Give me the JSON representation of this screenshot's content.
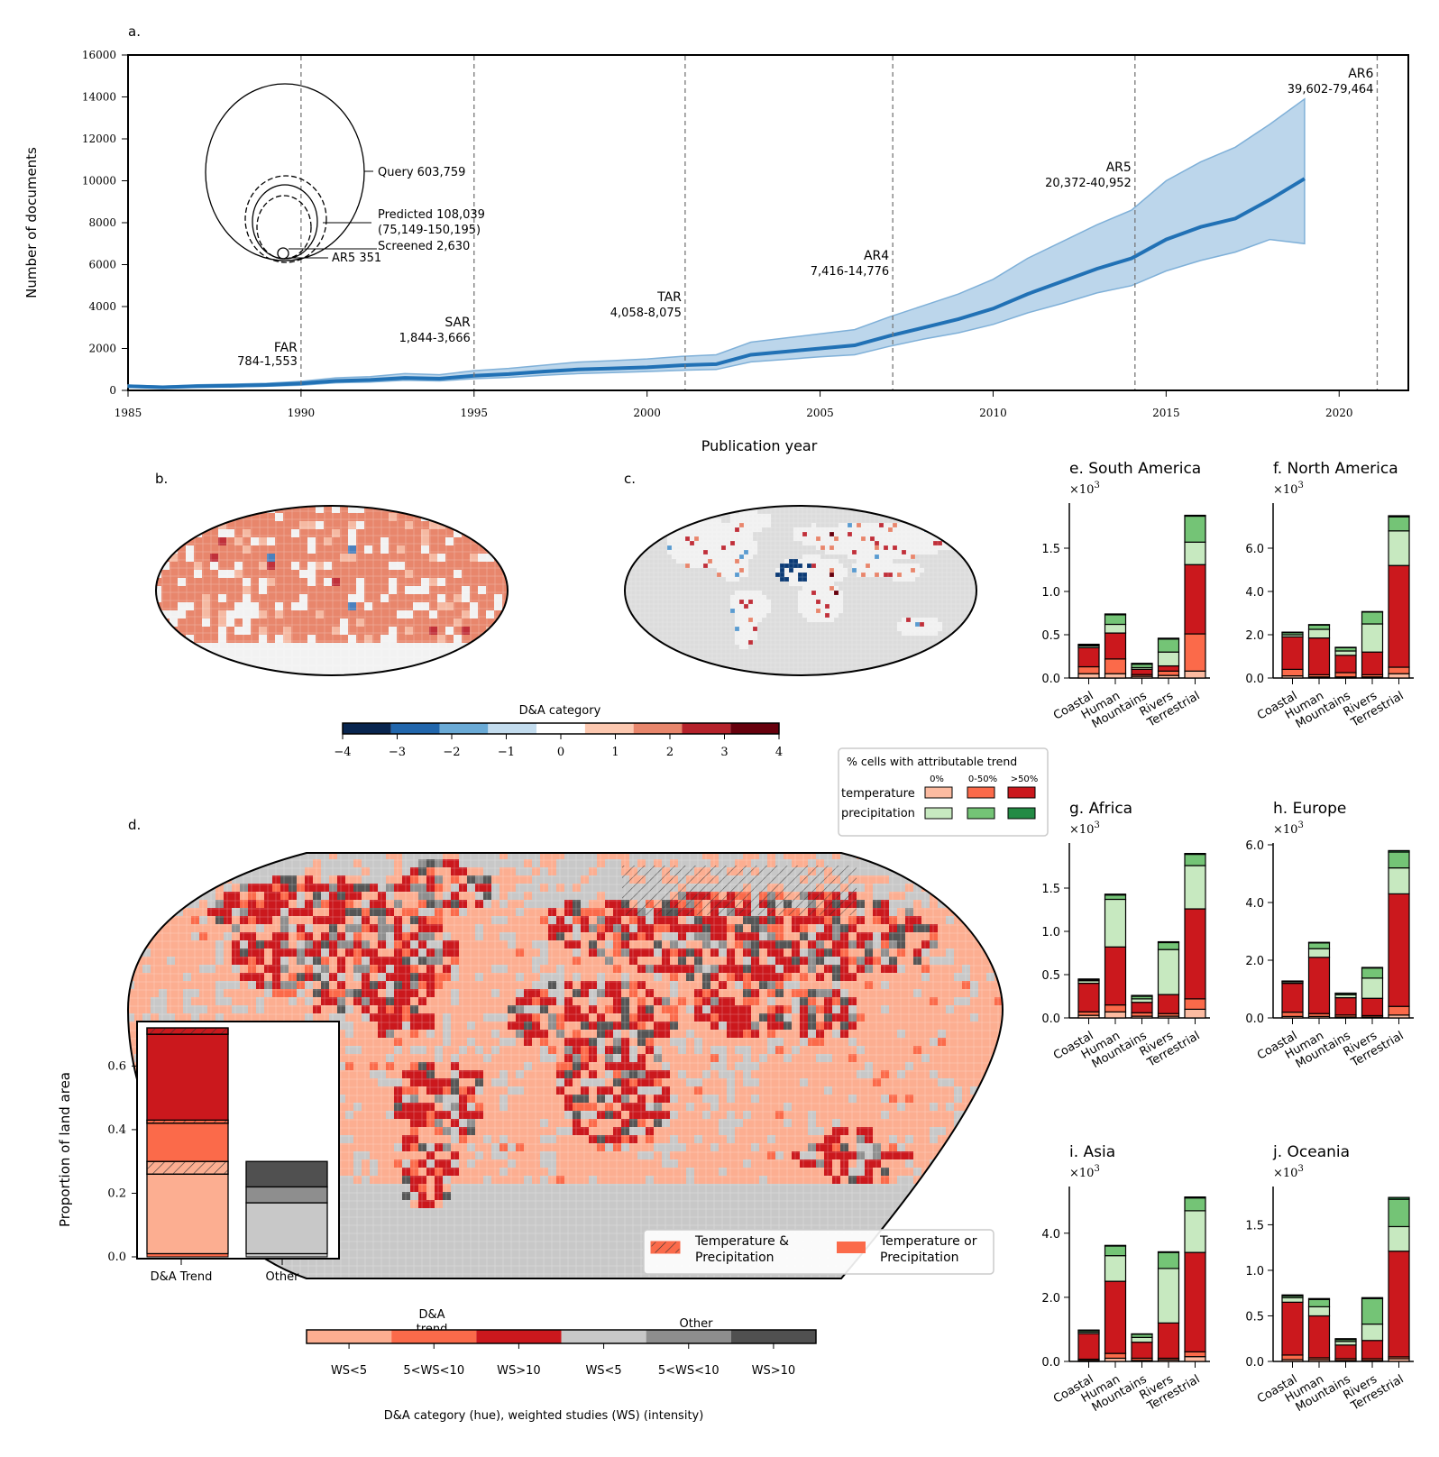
{
  "panel_a": {
    "label": "a.",
    "xlabel": "Publication year",
    "ylabel": "Number of documents",
    "xticks": [
      1985,
      1990,
      1995,
      2000,
      2005,
      2010,
      2015,
      2020
    ],
    "yticks": [
      0,
      2000,
      4000,
      6000,
      8000,
      10000,
      12000,
      14000,
      16000
    ],
    "venn": {
      "query": "Query 603,759",
      "predicted_1": "Predicted 108,039",
      "predicted_2": "(75,149-150,195)",
      "screened": "Screened 2,630",
      "ar5": "AR5 351"
    },
    "reports": [
      {
        "name": "FAR",
        "range": "784-1,553",
        "year": 1990.0
      },
      {
        "name": "SAR",
        "range": "1,844-3,666",
        "year": 1995.0
      },
      {
        "name": "TAR",
        "range": "4,058-8,075",
        "year": 2001.1
      },
      {
        "name": "AR4",
        "range": "7,416-14,776",
        "year": 2007.1
      },
      {
        "name": "AR5",
        "range": "20,372-40,952",
        "year": 2014.1
      },
      {
        "name": "AR6",
        "range": "39,602-79,464",
        "year": 2021.1
      }
    ]
  },
  "panel_b": {
    "label": "b."
  },
  "panel_c": {
    "label": "c."
  },
  "colorbar_da": {
    "title": "D&A category",
    "ticks": [
      "−4",
      "−3",
      "−2",
      "−1",
      "0",
      "1",
      "2",
      "3",
      "4"
    ]
  },
  "legend_trend": {
    "title": "%  cells with attributable trend",
    "cols": [
      "0%",
      "0-50%",
      ">50%"
    ],
    "rows": [
      "temperature",
      "precipitation"
    ]
  },
  "panel_d": {
    "label": "d.",
    "inset_ylabel": "Proportion of land area",
    "inset_yticks": [
      "0.0",
      "0.2",
      "0.4",
      "0.6"
    ],
    "inset_xticks": [
      "D&A Trend",
      "Other"
    ],
    "legend": [
      "Temperature &",
      "Precipitation",
      "Temperature or",
      "Precipitation"
    ]
  },
  "colorbar_ws": {
    "group1": [
      "D&A",
      "trend"
    ],
    "group2": "Other",
    "ticks": [
      "WS<5",
      "5<WS<10",
      "WS>10",
      "WS<5",
      "5<WS<10",
      "WS>10"
    ],
    "xlabel": "D&A category (hue), weighted studies (WS) (intensity)"
  },
  "regional_panels": {
    "multiplier": "×10",
    "exp": "3",
    "categories": [
      "Coastal",
      "Human",
      "Mountains",
      "Rivers",
      "Terrestrial"
    ]
  },
  "chart_data": [
    {
      "type": "line",
      "title": "",
      "xlabel": "Publication year",
      "ylabel": "Number of documents",
      "xlim": [
        1985,
        2022
      ],
      "ylim": [
        0,
        16000
      ],
      "x": [
        1985,
        1986,
        1987,
        1988,
        1989,
        1990,
        1991,
        1992,
        1993,
        1994,
        1995,
        1996,
        1997,
        1998,
        1999,
        2000,
        2001,
        2002,
        2003,
        2004,
        2005,
        2006,
        2007,
        2008,
        2009,
        2010,
        2011,
        2012,
        2013,
        2014,
        2015,
        2016,
        2017,
        2018,
        2019
      ],
      "series": [
        {
          "name": "mean",
          "values": [
            200,
            150,
            200,
            220,
            260,
            330,
            450,
            500,
            600,
            560,
            700,
            780,
            900,
            1000,
            1050,
            1100,
            1200,
            1250,
            1700,
            1850,
            2000,
            2150,
            2600,
            3000,
            3400,
            3900,
            4600,
            5200,
            5800,
            6300,
            7200,
            7800,
            8200,
            9100,
            10100
          ]
        },
        {
          "name": "lower",
          "values": [
            150,
            110,
            150,
            170,
            200,
            250,
            360,
            400,
            480,
            450,
            560,
            620,
            720,
            800,
            850,
            900,
            960,
            1000,
            1360,
            1480,
            1600,
            1700,
            2100,
            2450,
            2750,
            3150,
            3700,
            4150,
            4650,
            5000,
            5700,
            6200,
            6600,
            7200,
            7000
          ]
        },
        {
          "name": "upper",
          "values": [
            260,
            200,
            270,
            300,
            340,
            430,
            600,
            660,
            800,
            750,
            940,
            1050,
            1200,
            1350,
            1420,
            1500,
            1620,
            1700,
            2300,
            2500,
            2700,
            2900,
            3500,
            4050,
            4600,
            5300,
            6300,
            7100,
            7900,
            8600,
            10000,
            10900,
            11600,
            12700,
            13900
          ]
        }
      ]
    },
    {
      "type": "bar",
      "title": "e. South America",
      "categories": [
        "Coastal",
        "Human",
        "Mountains",
        "Rivers",
        "Terrestrial"
      ],
      "ylim": [
        0,
        2.0
      ],
      "yticks": [
        "0.0",
        "0.5",
        "1.0",
        "1.5"
      ],
      "series": [
        {
          "name": "temperature 0%",
          "values": [
            0.05,
            0.05,
            0.02,
            0.03,
            0.08
          ]
        },
        {
          "name": "temperature 0-50%",
          "values": [
            0.08,
            0.17,
            0.02,
            0.05,
            0.43
          ]
        },
        {
          "name": "temperature >50%",
          "values": [
            0.22,
            0.3,
            0.06,
            0.06,
            0.8
          ]
        },
        {
          "name": "precipitation 0%",
          "values": [
            0.02,
            0.1,
            0.02,
            0.16,
            0.26
          ]
        },
        {
          "name": "precipitation 0-50%",
          "values": [
            0.01,
            0.11,
            0.04,
            0.15,
            0.3
          ]
        },
        {
          "name": "precipitation >50%",
          "values": [
            0.01,
            0.01,
            0.01,
            0.01,
            0.01
          ]
        }
      ]
    },
    {
      "type": "bar",
      "title": "f. North America",
      "categories": [
        "Coastal",
        "Human",
        "Mountains",
        "Rivers",
        "Terrestrial"
      ],
      "ylim": [
        0,
        8.0
      ],
      "yticks": [
        "0.0",
        "2.0",
        "4.0",
        "6.0"
      ],
      "series": [
        {
          "name": "temperature 0%",
          "values": [
            0.1,
            0.05,
            0.05,
            0.05,
            0.2
          ]
        },
        {
          "name": "temperature 0-50%",
          "values": [
            0.3,
            0.1,
            0.2,
            0.1,
            0.3
          ]
        },
        {
          "name": "temperature >50%",
          "values": [
            1.5,
            1.7,
            0.8,
            1.05,
            4.7
          ]
        },
        {
          "name": "precipitation 0%",
          "values": [
            0.1,
            0.4,
            0.2,
            1.3,
            1.6
          ]
        },
        {
          "name": "precipitation 0-50%",
          "values": [
            0.1,
            0.2,
            0.15,
            0.55,
            0.65
          ]
        },
        {
          "name": "precipitation >50%",
          "values": [
            0.02,
            0.02,
            0.02,
            0.02,
            0.05
          ]
        }
      ]
    },
    {
      "type": "bar",
      "title": "g. Africa",
      "categories": [
        "Coastal",
        "Human",
        "Mountains",
        "Rivers",
        "Terrestrial"
      ],
      "ylim": [
        0,
        2.0
      ],
      "yticks": [
        "0.0",
        "0.5",
        "1.0",
        "1.5"
      ],
      "series": [
        {
          "name": "temperature 0%",
          "values": [
            0.03,
            0.07,
            0.02,
            0.02,
            0.1
          ]
        },
        {
          "name": "temperature 0-50%",
          "values": [
            0.04,
            0.08,
            0.04,
            0.03,
            0.12
          ]
        },
        {
          "name": "temperature >50%",
          "values": [
            0.33,
            0.67,
            0.12,
            0.22,
            1.04
          ]
        },
        {
          "name": "precipitation 0%",
          "values": [
            0.03,
            0.55,
            0.04,
            0.52,
            0.5
          ]
        },
        {
          "name": "precipitation 0-50%",
          "values": [
            0.01,
            0.05,
            0.03,
            0.08,
            0.13
          ]
        },
        {
          "name": "precipitation >50%",
          "values": [
            0.01,
            0.01,
            0.01,
            0.01,
            0.01
          ]
        }
      ]
    },
    {
      "type": "bar",
      "title": "h. Europe",
      "categories": [
        "Coastal",
        "Human",
        "Mountains",
        "Rivers",
        "Terrestrial"
      ],
      "ylim": [
        0,
        6.0
      ],
      "yticks": [
        "0.0",
        "2.0",
        "4.0",
        "6.0"
      ],
      "series": [
        {
          "name": "temperature 0%",
          "values": [
            0.05,
            0.05,
            0.03,
            0.03,
            0.1
          ]
        },
        {
          "name": "temperature 0-50%",
          "values": [
            0.15,
            0.1,
            0.07,
            0.05,
            0.3
          ]
        },
        {
          "name": "temperature >50%",
          "values": [
            1.0,
            1.95,
            0.6,
            0.6,
            3.9
          ]
        },
        {
          "name": "precipitation 0%",
          "values": [
            0.05,
            0.3,
            0.1,
            0.7,
            0.9
          ]
        },
        {
          "name": "precipitation 0-50%",
          "values": [
            0.02,
            0.2,
            0.05,
            0.35,
            0.55
          ]
        },
        {
          "name": "precipitation >50%",
          "values": [
            0.01,
            0.02,
            0.01,
            0.02,
            0.05
          ]
        }
      ]
    },
    {
      "type": "bar",
      "title": "i. Asia",
      "categories": [
        "Coastal",
        "Human",
        "Mountains",
        "Rivers",
        "Terrestrial"
      ],
      "ylim": [
        0,
        5.4
      ],
      "yticks": [
        "0.0",
        "2.0",
        "4.0"
      ],
      "series": [
        {
          "name": "temperature 0%",
          "values": [
            0.03,
            0.1,
            0.03,
            0.05,
            0.15
          ]
        },
        {
          "name": "temperature 0-50%",
          "values": [
            0.04,
            0.15,
            0.07,
            0.05,
            0.15
          ]
        },
        {
          "name": "temperature >50%",
          "values": [
            0.8,
            2.25,
            0.5,
            1.1,
            3.1
          ]
        },
        {
          "name": "precipitation 0%",
          "values": [
            0.05,
            0.8,
            0.15,
            1.7,
            1.3
          ]
        },
        {
          "name": "precipitation 0-50%",
          "values": [
            0.05,
            0.3,
            0.1,
            0.5,
            0.4
          ]
        },
        {
          "name": "precipitation >50%",
          "values": [
            0.01,
            0.02,
            0.01,
            0.02,
            0.03
          ]
        }
      ]
    },
    {
      "type": "bar",
      "title": "j. Oceania",
      "categories": [
        "Coastal",
        "Human",
        "Mountains",
        "Rivers",
        "Terrestrial"
      ],
      "ylim": [
        0,
        1.9
      ],
      "yticks": [
        "0.0",
        "0.5",
        "1.0",
        "1.5"
      ],
      "series": [
        {
          "name": "temperature 0%",
          "values": [
            0.02,
            0.02,
            0.01,
            0.01,
            0.03
          ]
        },
        {
          "name": "temperature 0-50%",
          "values": [
            0.05,
            0.02,
            0.02,
            0.02,
            0.02
          ]
        },
        {
          "name": "temperature >50%",
          "values": [
            0.58,
            0.46,
            0.15,
            0.2,
            1.16
          ]
        },
        {
          "name": "precipitation 0%",
          "values": [
            0.05,
            0.1,
            0.04,
            0.18,
            0.27
          ]
        },
        {
          "name": "precipitation 0-50%",
          "values": [
            0.02,
            0.08,
            0.02,
            0.28,
            0.3
          ]
        },
        {
          "name": "precipitation >50%",
          "values": [
            0.01,
            0.01,
            0.01,
            0.01,
            0.02
          ]
        }
      ]
    },
    {
      "type": "bar",
      "title": "",
      "categories": [
        "D&A Trend",
        "Other"
      ],
      "ylim": [
        0,
        0.74
      ],
      "series": [
        {
          "name": "WS<5",
          "values": [
            0.25,
            0.16
          ]
        },
        {
          "name": "WS<5 hatched",
          "values": [
            0.04,
            0.0
          ]
        },
        {
          "name": "5<WS<10",
          "values": [
            0.12,
            0.05
          ]
        },
        {
          "name": "5<WS<10 hatched",
          "values": [
            0.01,
            0.0
          ]
        },
        {
          "name": "WS>10",
          "values": [
            0.27,
            0.08
          ]
        },
        {
          "name": "WS>10 hatched",
          "values": [
            0.02,
            0.0
          ]
        }
      ]
    }
  ]
}
